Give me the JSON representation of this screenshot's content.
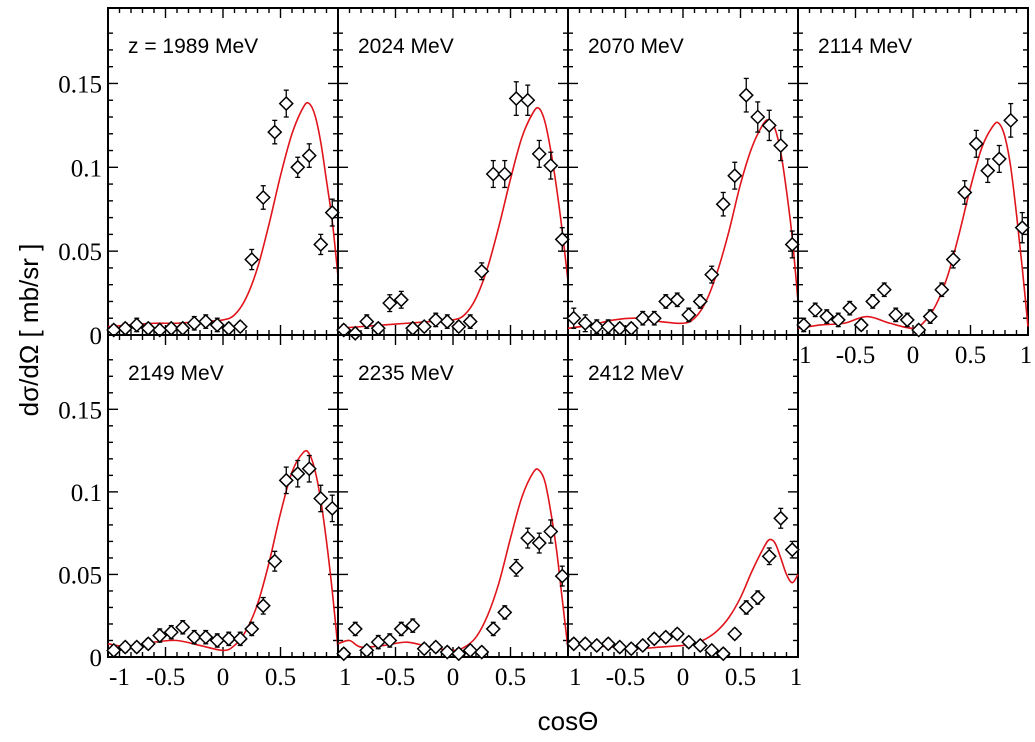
{
  "figure": {
    "ylabel": "dσ/dΩ [ mb/sr ]",
    "xlabel": "cosΘ"
  },
  "chart_data": [
    {
      "type": "scatter",
      "title": "z = 1989 MeV",
      "xlim": [
        -1,
        1
      ],
      "ylim": [
        0,
        0.195
      ],
      "x_tick_labels": [],
      "y_tick_labels": [
        "0",
        "0.05",
        "0.1",
        "0.15"
      ],
      "series": [
        {
          "kind": "data",
          "x": [
            -0.95,
            -0.85,
            -0.75,
            -0.65,
            -0.55,
            -0.45,
            -0.35,
            -0.25,
            -0.15,
            -0.05,
            0.05,
            0.15,
            0.25,
            0.35,
            0.45,
            0.55,
            0.65,
            0.75,
            0.85,
            0.95
          ],
          "y": [
            0.003,
            0.004,
            0.006,
            0.004,
            0.003,
            0.004,
            0.004,
            0.007,
            0.008,
            0.006,
            0.004,
            0.005,
            0.045,
            0.082,
            0.121,
            0.138,
            0.1,
            0.107,
            0.054,
            0.073
          ],
          "err": [
            0.003,
            0.003,
            0.004,
            0.003,
            0.003,
            0.003,
            0.003,
            0.004,
            0.004,
            0.004,
            0.003,
            0.003,
            0.006,
            0.007,
            0.007,
            0.008,
            0.006,
            0.007,
            0.006,
            0.008
          ]
        },
        {
          "kind": "fit",
          "x": [
            -1,
            -0.8,
            -0.6,
            -0.4,
            -0.2,
            0,
            0.1,
            0.2,
            0.3,
            0.4,
            0.5,
            0.6,
            0.7,
            0.75,
            0.8,
            0.85,
            0.9,
            0.95,
            1
          ],
          "y": [
            0.005,
            0.006,
            0.007,
            0.007,
            0.008,
            0.009,
            0.012,
            0.022,
            0.04,
            0.066,
            0.095,
            0.12,
            0.136,
            0.138,
            0.131,
            0.115,
            0.092,
            0.068,
            0.035
          ]
        }
      ]
    },
    {
      "type": "scatter",
      "title": "2024 MeV",
      "xlim": [
        -1,
        1
      ],
      "ylim": [
        0,
        0.195
      ],
      "x_tick_labels": [],
      "y_tick_labels": [],
      "series": [
        {
          "kind": "data",
          "x": [
            -0.95,
            -0.85,
            -0.75,
            -0.65,
            -0.55,
            -0.45,
            -0.35,
            -0.25,
            -0.15,
            -0.05,
            0.05,
            0.15,
            0.25,
            0.35,
            0.45,
            0.55,
            0.65,
            0.75,
            0.85,
            0.95
          ],
          "y": [
            0.003,
            0.001,
            0.008,
            0.004,
            0.019,
            0.021,
            0.004,
            0.005,
            0.009,
            0.008,
            0.005,
            0.008,
            0.038,
            0.096,
            0.096,
            0.141,
            0.14,
            0.108,
            0.101,
            0.057
          ],
          "err": [
            0.003,
            0.003,
            0.004,
            0.003,
            0.005,
            0.005,
            0.003,
            0.003,
            0.004,
            0.004,
            0.003,
            0.004,
            0.005,
            0.008,
            0.008,
            0.01,
            0.009,
            0.008,
            0.008,
            0.007
          ]
        },
        {
          "kind": "fit",
          "x": [
            -1,
            -0.8,
            -0.6,
            -0.4,
            -0.2,
            0,
            0.1,
            0.2,
            0.3,
            0.4,
            0.5,
            0.6,
            0.7,
            0.75,
            0.8,
            0.85,
            0.9,
            0.95,
            1
          ],
          "y": [
            0.004,
            0.005,
            0.006,
            0.007,
            0.008,
            0.009,
            0.012,
            0.022,
            0.04,
            0.065,
            0.093,
            0.118,
            0.133,
            0.135,
            0.127,
            0.11,
            0.088,
            0.062,
            0.032
          ]
        }
      ]
    },
    {
      "type": "scatter",
      "title": "2070 MeV",
      "xlim": [
        -1,
        1
      ],
      "ylim": [
        0,
        0.195
      ],
      "x_tick_labels": [],
      "y_tick_labels": [],
      "series": [
        {
          "kind": "data",
          "x": [
            -0.95,
            -0.85,
            -0.75,
            -0.65,
            -0.55,
            -0.45,
            -0.35,
            -0.25,
            -0.15,
            -0.05,
            0.05,
            0.15,
            0.25,
            0.35,
            0.45,
            0.55,
            0.65,
            0.75,
            0.85,
            0.95
          ],
          "y": [
            0.01,
            0.007,
            0.005,
            0.005,
            0.004,
            0.004,
            0.01,
            0.01,
            0.02,
            0.021,
            0.012,
            0.02,
            0.036,
            0.078,
            0.095,
            0.143,
            0.13,
            0.125,
            0.113,
            0.054
          ],
          "err": [
            0.006,
            0.005,
            0.004,
            0.004,
            0.003,
            0.003,
            0.004,
            0.004,
            0.004,
            0.004,
            0.004,
            0.004,
            0.005,
            0.007,
            0.008,
            0.01,
            0.009,
            0.009,
            0.009,
            0.008
          ]
        },
        {
          "kind": "fit",
          "x": [
            -1,
            -0.8,
            -0.6,
            -0.4,
            -0.2,
            0,
            0.1,
            0.2,
            0.3,
            0.4,
            0.5,
            0.6,
            0.7,
            0.75,
            0.8,
            0.85,
            0.9,
            0.95,
            1
          ],
          "y": [
            0.004,
            0.006,
            0.009,
            0.01,
            0.008,
            0.007,
            0.01,
            0.02,
            0.038,
            0.062,
            0.09,
            0.112,
            0.126,
            0.128,
            0.123,
            0.109,
            0.086,
            0.058,
            0.02
          ]
        }
      ]
    },
    {
      "type": "scatter",
      "title": "2114 MeV",
      "xlim": [
        -1,
        1
      ],
      "ylim": [
        0,
        0.195
      ],
      "x_tick_labels": [
        "1",
        "-0.5",
        "0",
        "0.5",
        "1"
      ],
      "y_tick_labels": [],
      "series": [
        {
          "kind": "data",
          "x": [
            -0.95,
            -0.85,
            -0.75,
            -0.65,
            -0.55,
            -0.45,
            -0.35,
            -0.25,
            -0.15,
            -0.05,
            0.05,
            0.15,
            0.25,
            0.35,
            0.45,
            0.55,
            0.65,
            0.75,
            0.85,
            0.95
          ],
          "y": [
            0.006,
            0.015,
            0.011,
            0.009,
            0.016,
            0.006,
            0.02,
            0.027,
            0.012,
            0.009,
            0.003,
            0.011,
            0.027,
            0.045,
            0.085,
            0.114,
            0.098,
            0.105,
            0.128,
            0.064
          ],
          "err": [
            0.004,
            0.004,
            0.004,
            0.004,
            0.004,
            0.003,
            0.004,
            0.004,
            0.004,
            0.004,
            0.003,
            0.004,
            0.004,
            0.005,
            0.007,
            0.008,
            0.007,
            0.008,
            0.01,
            0.009
          ]
        },
        {
          "kind": "fit",
          "x": [
            -1,
            -0.8,
            -0.6,
            -0.4,
            -0.2,
            0,
            0.1,
            0.2,
            0.3,
            0.4,
            0.5,
            0.6,
            0.7,
            0.75,
            0.8,
            0.85,
            0.9,
            0.95,
            1
          ],
          "y": [
            0.004,
            0.006,
            0.007,
            0.011,
            0.007,
            0.004,
            0.008,
            0.018,
            0.035,
            0.06,
            0.088,
            0.112,
            0.125,
            0.126,
            0.118,
            0.1,
            0.072,
            0.04,
            0.005
          ]
        }
      ]
    },
    {
      "type": "scatter",
      "title": "2149 MeV",
      "xlim": [
        -1,
        1
      ],
      "ylim": [
        0,
        0.195
      ],
      "x_tick_labels": [
        "-1",
        "-0.5",
        "0",
        "0.5",
        ""
      ],
      "y_tick_labels": [
        "0",
        "0.05",
        "0.1",
        "0.15"
      ],
      "series": [
        {
          "kind": "data",
          "x": [
            -0.95,
            -0.85,
            -0.75,
            -0.65,
            -0.55,
            -0.45,
            -0.35,
            -0.25,
            -0.15,
            -0.05,
            0.05,
            0.15,
            0.25,
            0.35,
            0.45,
            0.55,
            0.65,
            0.75,
            0.85,
            0.95
          ],
          "y": [
            0.004,
            0.006,
            0.006,
            0.008,
            0.013,
            0.015,
            0.018,
            0.012,
            0.012,
            0.01,
            0.011,
            0.011,
            0.017,
            0.031,
            0.058,
            0.107,
            0.111,
            0.114,
            0.096,
            0.09
          ],
          "err": [
            0.003,
            0.003,
            0.003,
            0.003,
            0.004,
            0.004,
            0.004,
            0.004,
            0.004,
            0.004,
            0.004,
            0.004,
            0.004,
            0.005,
            0.006,
            0.008,
            0.008,
            0.008,
            0.008,
            0.008
          ]
        },
        {
          "kind": "fit",
          "x": [
            -1,
            -0.8,
            -0.6,
            -0.4,
            -0.2,
            0,
            0.1,
            0.2,
            0.3,
            0.4,
            0.5,
            0.6,
            0.7,
            0.75,
            0.8,
            0.85,
            0.9,
            0.95,
            1
          ],
          "y": [
            0.008,
            0.006,
            0.009,
            0.01,
            0.007,
            0.004,
            0.007,
            0.016,
            0.032,
            0.057,
            0.087,
            0.112,
            0.124,
            0.123,
            0.113,
            0.095,
            0.07,
            0.04,
            0.005
          ]
        }
      ]
    },
    {
      "type": "scatter",
      "title": "2235 MeV",
      "xlim": [
        -1,
        1
      ],
      "ylim": [
        0,
        0.195
      ],
      "x_tick_labels": [
        "1",
        "-0.5",
        "0",
        "0.5",
        ""
      ],
      "y_tick_labels": [],
      "series": [
        {
          "kind": "data",
          "x": [
            -0.95,
            -0.85,
            -0.75,
            -0.65,
            -0.55,
            -0.45,
            -0.35,
            -0.25,
            -0.15,
            -0.05,
            0.05,
            0.15,
            0.25,
            0.35,
            0.45,
            0.55,
            0.65,
            0.75,
            0.85,
            0.95
          ],
          "y": [
            0.002,
            0.017,
            0.004,
            0.009,
            0.01,
            0.017,
            0.019,
            0.005,
            0.006,
            0.003,
            0.002,
            0.004,
            0.003,
            0.017,
            0.027,
            0.054,
            0.072,
            0.069,
            0.076,
            0.049
          ],
          "err": [
            0.003,
            0.004,
            0.003,
            0.004,
            0.004,
            0.004,
            0.004,
            0.003,
            0.003,
            0.003,
            0.003,
            0.003,
            0.003,
            0.004,
            0.004,
            0.005,
            0.006,
            0.006,
            0.007,
            0.006
          ]
        },
        {
          "kind": "fit",
          "x": [
            -1,
            -0.9,
            -0.8,
            -0.6,
            -0.4,
            -0.2,
            0,
            0.1,
            0.2,
            0.3,
            0.4,
            0.5,
            0.6,
            0.7,
            0.75,
            0.8,
            0.85,
            0.9,
            0.95,
            1
          ],
          "y": [
            0.008,
            0.01,
            0.006,
            0.007,
            0.009,
            0.006,
            0.004,
            0.006,
            0.012,
            0.025,
            0.045,
            0.072,
            0.097,
            0.112,
            0.113,
            0.106,
            0.088,
            0.065,
            0.035,
            0.005
          ]
        }
      ]
    },
    {
      "type": "scatter",
      "title": "2412 MeV",
      "xlim": [
        -1,
        1
      ],
      "ylim": [
        0,
        0.195
      ],
      "x_tick_labels": [
        "1",
        "-0.5",
        "0",
        "0.5",
        "1"
      ],
      "y_tick_labels": [],
      "series": [
        {
          "kind": "data",
          "x": [
            -0.95,
            -0.85,
            -0.75,
            -0.65,
            -0.55,
            -0.45,
            -0.35,
            -0.25,
            -0.15,
            -0.05,
            0.05,
            0.15,
            0.25,
            0.35,
            0.45,
            0.55,
            0.65,
            0.75,
            0.85,
            0.95
          ],
          "y": [
            0.008,
            0.008,
            0.007,
            0.008,
            0.006,
            0.005,
            0.007,
            0.011,
            0.012,
            0.014,
            0.009,
            0.007,
            0.004,
            0.002,
            0.014,
            0.03,
            0.036,
            0.061,
            0.084,
            0.065
          ],
          "err": [
            0.003,
            0.003,
            0.003,
            0.003,
            0.003,
            0.003,
            0.003,
            0.003,
            0.003,
            0.003,
            0.003,
            0.003,
            0.003,
            0.003,
            0.003,
            0.004,
            0.004,
            0.005,
            0.006,
            0.005
          ]
        },
        {
          "kind": "fit",
          "x": [
            -1,
            -0.8,
            -0.6,
            -0.4,
            -0.2,
            0,
            0.1,
            0.2,
            0.3,
            0.4,
            0.5,
            0.6,
            0.7,
            0.75,
            0.8,
            0.85,
            0.9,
            0.95,
            1
          ],
          "y": [
            0.008,
            0.007,
            0.006,
            0.005,
            0.006,
            0.007,
            0.008,
            0.011,
            0.016,
            0.024,
            0.036,
            0.052,
            0.066,
            0.071,
            0.069,
            0.06,
            0.05,
            0.045,
            0.05
          ]
        }
      ]
    }
  ]
}
